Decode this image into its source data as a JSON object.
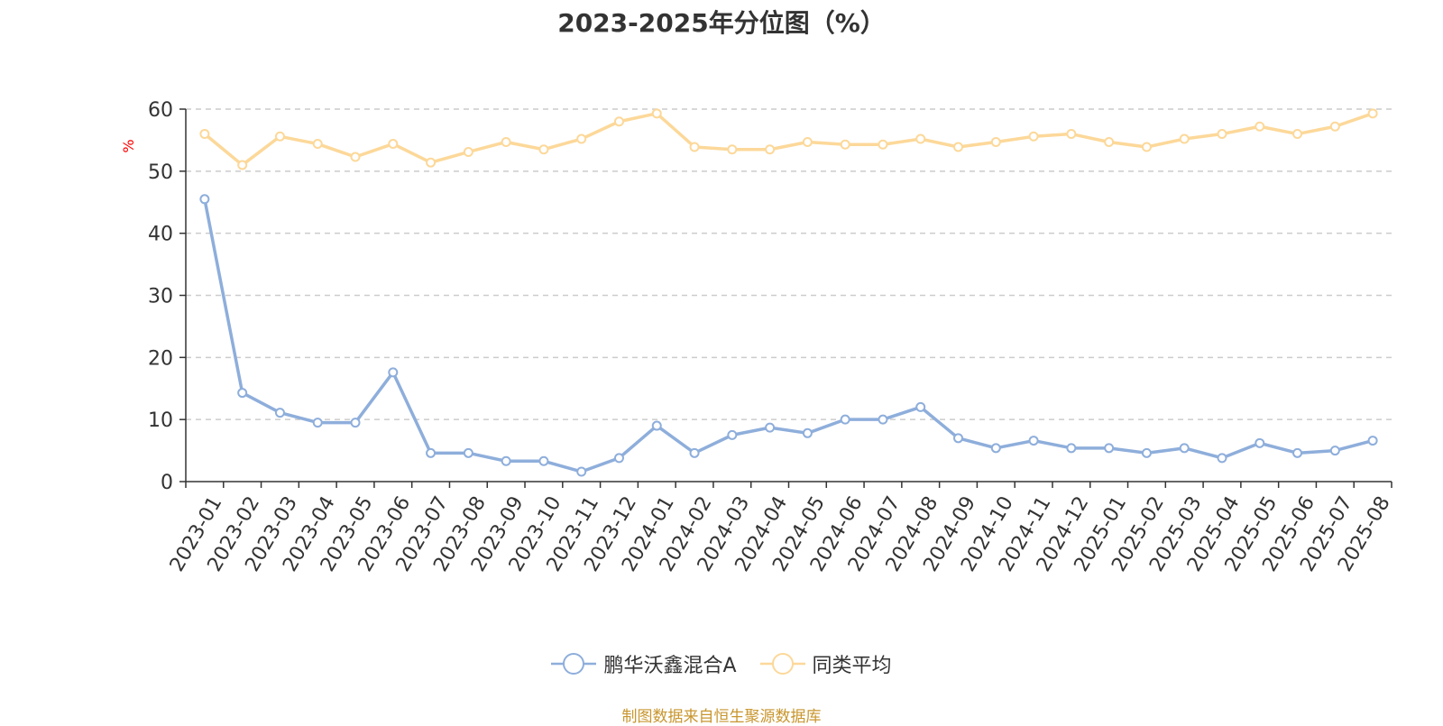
{
  "chart_data": {
    "type": "line",
    "title": "2023-2025年分位图（%）",
    "ylabel": "%",
    "ylim": [
      0,
      60
    ],
    "yticks": [
      0,
      10,
      20,
      30,
      40,
      50,
      60
    ],
    "grid": true,
    "legend_position": "bottom",
    "categories": [
      "2023-01",
      "2023-02",
      "2023-03",
      "2023-04",
      "2023-05",
      "2023-06",
      "2023-07",
      "2023-08",
      "2023-09",
      "2023-10",
      "2023-11",
      "2023-12",
      "2024-01",
      "2024-02",
      "2024-03",
      "2024-04",
      "2024-05",
      "2024-06",
      "2024-07",
      "2024-08",
      "2024-09",
      "2024-10",
      "2024-11",
      "2024-12",
      "2025-01",
      "2025-02",
      "2025-03",
      "2025-04",
      "2025-05",
      "2025-06",
      "2025-07",
      "2025-08"
    ],
    "series": [
      {
        "name": "鹏华沃鑫混合A",
        "color": "#8eaedb",
        "values": [
          45.5,
          14.3,
          11.1,
          9.5,
          9.5,
          17.6,
          4.6,
          4.6,
          3.3,
          3.3,
          1.6,
          3.8,
          9.0,
          4.6,
          7.5,
          8.7,
          7.8,
          10.0,
          10.0,
          12.0,
          7.0,
          5.4,
          6.6,
          5.4,
          5.4,
          4.6,
          5.4,
          3.8,
          6.2,
          4.6,
          5.0,
          6.6
        ]
      },
      {
        "name": "同类平均",
        "color": "#fcd899",
        "values": [
          56.0,
          51.0,
          55.6,
          54.4,
          52.3,
          54.4,
          51.4,
          53.1,
          54.7,
          53.5,
          55.2,
          58.0,
          59.3,
          53.9,
          53.5,
          53.5,
          54.7,
          54.3,
          54.3,
          55.2,
          53.9,
          54.7,
          55.6,
          56.0,
          54.7,
          53.9,
          55.2,
          56.0,
          57.2,
          56.0,
          57.2,
          59.3
        ]
      }
    ]
  },
  "source_note": "制图数据来自恒生聚源数据库"
}
